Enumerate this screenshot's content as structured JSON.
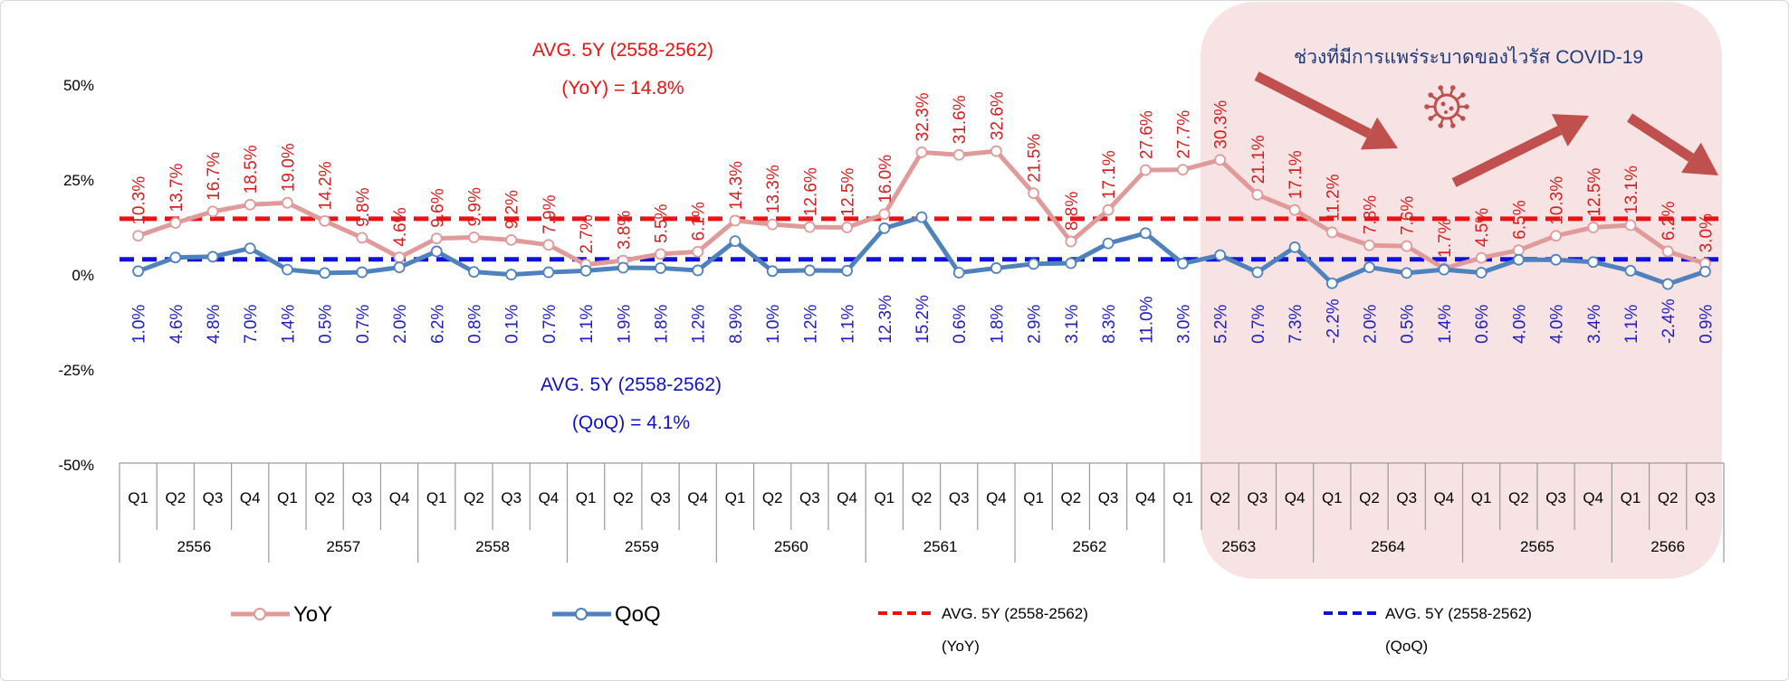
{
  "chart_data": {
    "type": "line",
    "y_tick_labels": [
      "50%",
      "25%",
      "0%",
      "-25%",
      "-50%"
    ],
    "y_ticks": [
      50,
      25,
      0,
      -25,
      -50
    ],
    "ylim": [
      -50,
      50
    ],
    "quarters": [
      "Q1",
      "Q2",
      "Q3",
      "Q4",
      "Q1",
      "Q2",
      "Q3",
      "Q4",
      "Q1",
      "Q2",
      "Q3",
      "Q4",
      "Q1",
      "Q2",
      "Q3",
      "Q4",
      "Q1",
      "Q2",
      "Q3",
      "Q4",
      "Q1",
      "Q2",
      "Q3",
      "Q4",
      "Q1",
      "Q2",
      "Q3",
      "Q4",
      "Q1",
      "Q2",
      "Q3",
      "Q4",
      "Q1",
      "Q2",
      "Q3",
      "Q4",
      "Q1",
      "Q2",
      "Q3",
      "Q4",
      "Q1",
      "Q2",
      "Q3"
    ],
    "years": [
      "2556",
      "2557",
      "2558",
      "2559",
      "2560",
      "2561",
      "2562",
      "2563",
      "2564",
      "2565",
      "2566"
    ],
    "series": [
      {
        "name": "YoY",
        "color": "#e09a9a",
        "label_color": "#d42020",
        "values": [
          10.3,
          13.7,
          16.7,
          18.5,
          19.0,
          14.2,
          9.8,
          4.6,
          9.6,
          9.9,
          9.2,
          7.9,
          2.7,
          3.8,
          5.5,
          6.1,
          14.3,
          13.3,
          12.6,
          12.5,
          16.0,
          32.3,
          31.6,
          32.6,
          21.5,
          8.8,
          17.1,
          27.6,
          27.7,
          30.3,
          21.1,
          17.1,
          11.2,
          7.8,
          7.6,
          1.7,
          4.5,
          6.5,
          10.3,
          12.5,
          13.1,
          6.2,
          3.0
        ],
        "labels": [
          "10.3%",
          "13.7%",
          "16.7%",
          "18.5%",
          "19.0%",
          "14.2%",
          "9.8%",
          "4.6%",
          "9.6%",
          "9.9%",
          "9.2%",
          "7.9%",
          "2.7%",
          "3.8%",
          "5.5%",
          "6.1%",
          "14.3%",
          "13.3%",
          "12.6%",
          "12.5%",
          "16.0%",
          "32.3%",
          "31.6%",
          "32.6%",
          "21.5%",
          "8.8%",
          "17.1%",
          "27.6%",
          "27.7%",
          "30.3%",
          "21.1%",
          "17.1%",
          "11.2%",
          "7.8%",
          "7.6%",
          "1.7%",
          "4.5%",
          "6.5%",
          "10.3%",
          "12.5%",
          "13.1%",
          "6.2%",
          "3.0%"
        ]
      },
      {
        "name": "QoQ",
        "color": "#4f81bd",
        "label_color": "#1f1fbf",
        "values": [
          1.0,
          4.6,
          4.8,
          7.0,
          1.4,
          0.5,
          0.7,
          2.0,
          6.2,
          0.8,
          0.1,
          0.7,
          1.1,
          1.9,
          1.8,
          1.2,
          8.9,
          1.0,
          1.2,
          1.1,
          12.3,
          15.2,
          0.6,
          1.8,
          2.9,
          3.1,
          8.3,
          11.0,
          3.0,
          5.2,
          0.7,
          7.3,
          -2.2,
          2.0,
          0.5,
          1.4,
          0.6,
          4.0,
          4.0,
          3.4,
          1.1,
          -2.4,
          0.9
        ],
        "labels": [
          "1.0%",
          "4.6%",
          "4.8%",
          "7.0%",
          "1.4%",
          "0.5%",
          "0.7%",
          "2.0%",
          "6.2%",
          "0.8%",
          "0.1%",
          "0.7%",
          "1.1%",
          "1.9%",
          "1.8%",
          "1.2%",
          "8.9%",
          "1.0%",
          "1.2%",
          "1.1%",
          "12.3%",
          "15.2%",
          "0.6%",
          "1.8%",
          "2.9%",
          "3.1%",
          "8.3%",
          "11.0%",
          "3.0%",
          "5.2%",
          "0.7%",
          "7.3%",
          "-2.2%",
          "2.0%",
          "0.5%",
          "1.4%",
          "0.6%",
          "4.0%",
          "4.0%",
          "3.4%",
          "1.1%",
          "-2.4%",
          "0.9%"
        ]
      }
    ],
    "averages": {
      "yoy": {
        "value": 14.8,
        "color": "#ee1111",
        "line1": "AVG. 5Y (2558-2562)",
        "line2": "(YoY) = 14.8%"
      },
      "qoq": {
        "value": 4.1,
        "color": "#1111dd",
        "line1": "AVG. 5Y (2558-2562)",
        "line2": "(QoQ) = 4.1%"
      }
    },
    "covid_note": "ช่วงที่มีการแพร่ระบาดของไวรัส COVID-19",
    "covid_color": "#f7e3e3",
    "arrow_color": "#c0504d",
    "legend": {
      "yoy": "YoY",
      "qoq": "QoQ",
      "avg_yoy_line1": "AVG. 5Y (2558-2562)",
      "avg_yoy_line2": "(YoY)",
      "avg_qoq_line1": "AVG. 5Y (2558-2562)",
      "avg_qoq_line2": "(QoQ)"
    }
  }
}
